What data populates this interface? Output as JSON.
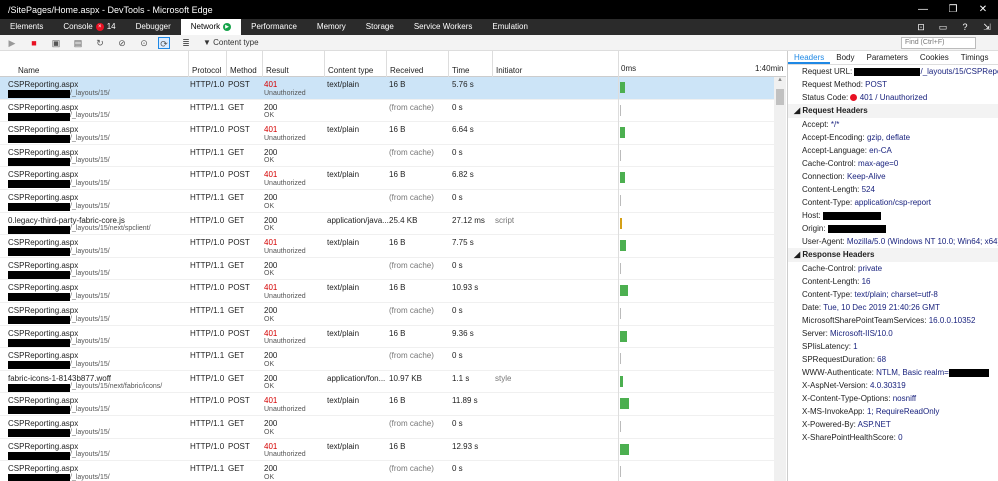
{
  "window": {
    "title": "/SitePages/Home.aspx - DevTools - Microsoft Edge"
  },
  "tabs": [
    {
      "label": "Elements"
    },
    {
      "label": "Console",
      "badge": "14"
    },
    {
      "label": "Debugger"
    },
    {
      "label": "Network",
      "active": true
    },
    {
      "label": "Performance"
    },
    {
      "label": "Memory"
    },
    {
      "label": "Storage"
    },
    {
      "label": "Service Workers"
    },
    {
      "label": "Emulation"
    }
  ],
  "toolbar": {
    "content_type_filter": "Content type",
    "find_placeholder": "Find (Ctrl+F)"
  },
  "table": {
    "headers": {
      "name": "Name",
      "protocol": "Protocol",
      "method": "Method",
      "result": "Result",
      "content_type": "Content type",
      "received": "Received",
      "time": "Time",
      "initiator": "Initiator"
    },
    "timeline_start": "0ms",
    "timeline_end": "1:40min"
  },
  "rows": [
    {
      "name": "CSPReporting.aspx",
      "path": "/_layouts/15/",
      "protocol": "HTTP/1.0",
      "method": "POST",
      "result": "401",
      "status": "Unauthorized",
      "ctype": "text/plain",
      "received": "16 B",
      "time": "5.76 s",
      "initiator": ""
    },
    {
      "name": "CSPReporting.aspx",
      "path": "/_layouts/15/",
      "protocol": "HTTP/1.1",
      "method": "GET",
      "result": "200",
      "status": "OK",
      "ctype": "",
      "received": "(from cache)",
      "time": "0 s",
      "initiator": ""
    },
    {
      "name": "CSPReporting.aspx",
      "path": "/_layouts/15/",
      "protocol": "HTTP/1.0",
      "method": "POST",
      "result": "401",
      "status": "Unauthorized",
      "ctype": "text/plain",
      "received": "16 B",
      "time": "6.64 s",
      "initiator": ""
    },
    {
      "name": "CSPReporting.aspx",
      "path": "/_layouts/15/",
      "protocol": "HTTP/1.1",
      "method": "GET",
      "result": "200",
      "status": "OK",
      "ctype": "",
      "received": "(from cache)",
      "time": "0 s",
      "initiator": ""
    },
    {
      "name": "CSPReporting.aspx",
      "path": "/_layouts/15/",
      "protocol": "HTTP/1.0",
      "method": "POST",
      "result": "401",
      "status": "Unauthorized",
      "ctype": "text/plain",
      "received": "16 B",
      "time": "6.82 s",
      "initiator": ""
    },
    {
      "name": "CSPReporting.aspx",
      "path": "/_layouts/15/",
      "protocol": "HTTP/1.1",
      "method": "GET",
      "result": "200",
      "status": "OK",
      "ctype": "",
      "received": "(from cache)",
      "time": "0 s",
      "initiator": ""
    },
    {
      "name": "0.legacy-third-party-fabric-core.js",
      "path": "/_layouts/15/next/spclient/",
      "protocol": "HTTP/1.0",
      "method": "GET",
      "result": "200",
      "status": "OK",
      "ctype": "application/java...",
      "received": "25.4 KB",
      "time": "27.12 ms",
      "initiator": "script"
    },
    {
      "name": "CSPReporting.aspx",
      "path": "/_layouts/15/",
      "protocol": "HTTP/1.0",
      "method": "POST",
      "result": "401",
      "status": "Unauthorized",
      "ctype": "text/plain",
      "received": "16 B",
      "time": "7.75 s",
      "initiator": ""
    },
    {
      "name": "CSPReporting.aspx",
      "path": "/_layouts/15/",
      "protocol": "HTTP/1.1",
      "method": "GET",
      "result": "200",
      "status": "OK",
      "ctype": "",
      "received": "(from cache)",
      "time": "0 s",
      "initiator": ""
    },
    {
      "name": "CSPReporting.aspx",
      "path": "/_layouts/15/",
      "protocol": "HTTP/1.0",
      "method": "POST",
      "result": "401",
      "status": "Unauthorized",
      "ctype": "text/plain",
      "received": "16 B",
      "time": "10.93 s",
      "initiator": ""
    },
    {
      "name": "CSPReporting.aspx",
      "path": "/_layouts/15/",
      "protocol": "HTTP/1.1",
      "method": "GET",
      "result": "200",
      "status": "OK",
      "ctype": "",
      "received": "(from cache)",
      "time": "0 s",
      "initiator": ""
    },
    {
      "name": "CSPReporting.aspx",
      "path": "/_layouts/15/",
      "protocol": "HTTP/1.0",
      "method": "POST",
      "result": "401",
      "status": "Unauthorized",
      "ctype": "text/plain",
      "received": "16 B",
      "time": "9.36 s",
      "initiator": ""
    },
    {
      "name": "CSPReporting.aspx",
      "path": "/_layouts/15/",
      "protocol": "HTTP/1.1",
      "method": "GET",
      "result": "200",
      "status": "OK",
      "ctype": "",
      "received": "(from cache)",
      "time": "0 s",
      "initiator": ""
    },
    {
      "name": "fabric-icons-1-8143b877.woff",
      "path": "/_layouts/15/next/fabric/icons/",
      "protocol": "HTTP/1.0",
      "method": "GET",
      "result": "200",
      "status": "OK",
      "ctype": "application/fon...",
      "received": "10.97 KB",
      "time": "1.1 s",
      "initiator": "style"
    },
    {
      "name": "CSPReporting.aspx",
      "path": "/_layouts/15/",
      "protocol": "HTTP/1.0",
      "method": "POST",
      "result": "401",
      "status": "Unauthorized",
      "ctype": "text/plain",
      "received": "16 B",
      "time": "11.89 s",
      "initiator": ""
    },
    {
      "name": "CSPReporting.aspx",
      "path": "/_layouts/15/",
      "protocol": "HTTP/1.1",
      "method": "GET",
      "result": "200",
      "status": "OK",
      "ctype": "",
      "received": "(from cache)",
      "time": "0 s",
      "initiator": ""
    },
    {
      "name": "CSPReporting.aspx",
      "path": "/_layouts/15/",
      "protocol": "HTTP/1.0",
      "method": "POST",
      "result": "401",
      "status": "Unauthorized",
      "ctype": "text/plain",
      "received": "16 B",
      "time": "12.93 s",
      "initiator": ""
    },
    {
      "name": "CSPReporting.aspx",
      "path": "/_layouts/15/",
      "protocol": "HTTP/1.1",
      "method": "GET",
      "result": "200",
      "status": "OK",
      "ctype": "",
      "received": "(from cache)",
      "time": "0 s",
      "initiator": ""
    }
  ],
  "details": {
    "tabs": [
      "Headers",
      "Body",
      "Parameters",
      "Cookies",
      "Timings"
    ],
    "request_url_label": "Request URL:",
    "request_url_value": "/_layouts/15/CSPRepor...",
    "request_method_label": "Request Method:",
    "request_method_value": "POST",
    "status_code_label": "Status Code:",
    "status_code_value": "401 / Unauthorized",
    "request_headers_title": "Request Headers",
    "request_headers": [
      {
        "k": "Accept:",
        "v": "*/*"
      },
      {
        "k": "Accept-Encoding:",
        "v": "gzip, deflate"
      },
      {
        "k": "Accept-Language:",
        "v": "en-CA"
      },
      {
        "k": "Cache-Control:",
        "v": "max-age=0"
      },
      {
        "k": "Connection:",
        "v": "Keep-Alive"
      },
      {
        "k": "Content-Length:",
        "v": "524"
      },
      {
        "k": "Content-Type:",
        "v": "application/csp-report"
      },
      {
        "k": "Host:",
        "v": ""
      },
      {
        "k": "Origin:",
        "v": ""
      },
      {
        "k": "User-Agent:",
        "v": "Mozilla/5.0 (Windows NT 10.0; Win64; x64)"
      }
    ],
    "response_headers_title": "Response Headers",
    "response_headers": [
      {
        "k": "Cache-Control:",
        "v": "private"
      },
      {
        "k": "Content-Length:",
        "v": "16"
      },
      {
        "k": "Content-Type:",
        "v": "text/plain; charset=utf-8"
      },
      {
        "k": "Date:",
        "v": "Tue, 10 Dec 2019 21:40:26 GMT"
      },
      {
        "k": "MicrosoftSharePointTeamServices:",
        "v": "16.0.0.10352"
      },
      {
        "k": "Server:",
        "v": "Microsoft-IIS/10.0"
      },
      {
        "k": "SPIisLatency:",
        "v": "1"
      },
      {
        "k": "SPRequestDuration:",
        "v": "68"
      },
      {
        "k": "WWW-Authenticate:",
        "v": "NTLM, Basic realm="
      },
      {
        "k": "X-AspNet-Version:",
        "v": "4.0.30319"
      },
      {
        "k": "X-Content-Type-Options:",
        "v": "nosniff"
      },
      {
        "k": "X-MS-InvokeApp:",
        "v": "1; RequireReadOnly"
      },
      {
        "k": "X-Powered-By:",
        "v": "ASP.NET"
      },
      {
        "k": "X-SharePointHealthScore:",
        "v": "0"
      }
    ]
  }
}
